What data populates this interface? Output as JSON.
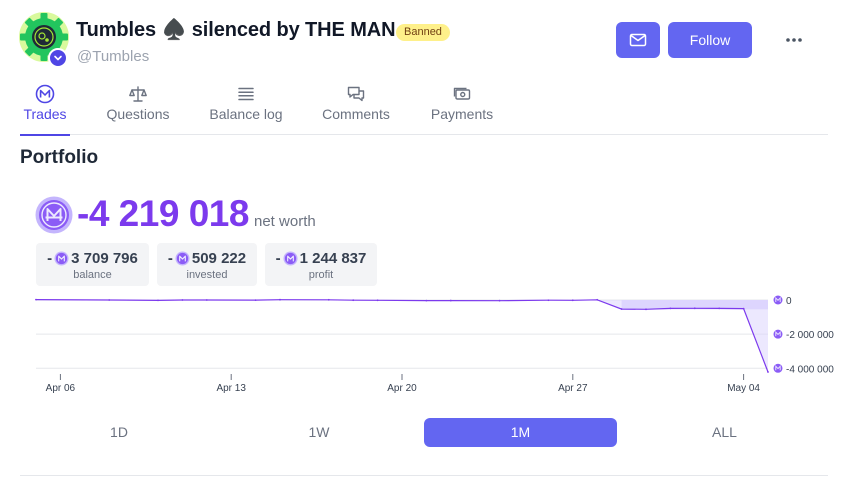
{
  "profile": {
    "name": "Tumbles ♠️ silenced by THE MAN",
    "badge": "Banned",
    "handle": "@Tumbles",
    "avatar_icon": "gear-avatar",
    "verified_icon": "chevron-down-icon"
  },
  "actions": {
    "message_icon": "mail-icon",
    "follow_label": "Follow",
    "more_icon": "ellipsis-icon"
  },
  "tabs": [
    {
      "label": "Trades",
      "icon": "mana-icon",
      "active": true
    },
    {
      "label": "Questions",
      "icon": "scale-icon",
      "active": false
    },
    {
      "label": "Balance log",
      "icon": "list-icon",
      "active": false
    },
    {
      "label": "Comments",
      "icon": "chat-icon",
      "active": false
    },
    {
      "label": "Payments",
      "icon": "payments-icon",
      "active": false
    }
  ],
  "portfolio": {
    "title": "Portfolio",
    "net_worth": "-4 219 018",
    "net_worth_label": "net worth",
    "stats": [
      {
        "sign": "-",
        "value": "3 709 796",
        "label": "balance"
      },
      {
        "sign": "-",
        "value": "509 222",
        "label": "invested"
      },
      {
        "sign": "-",
        "value": "1 244 837",
        "label": "profit"
      }
    ]
  },
  "chart_data": {
    "type": "area",
    "x_ticks": [
      "Apr 06",
      "Apr 13",
      "Apr 20",
      "Apr 27",
      "May 04"
    ],
    "y_ticks": [
      0,
      -2000000,
      -4000000
    ],
    "y_tick_labels": [
      "0",
      "-2 000 000",
      "-4 000 000"
    ],
    "ylim": [
      -4219018,
      0
    ],
    "grid": true,
    "series": [
      {
        "x": [
          "2024-04-05",
          "2024-04-08",
          "2024-04-10",
          "2024-04-11",
          "2024-04-12",
          "2024-04-14",
          "2024-04-15",
          "2024-04-17",
          "2024-04-18",
          "2024-04-19",
          "2024-04-21",
          "2024-04-22",
          "2024-04-24",
          "2024-04-26",
          "2024-04-27",
          "2024-04-28",
          "2024-04-29",
          "2024-04-30",
          "2024-05-01",
          "2024-05-02",
          "2024-05-03",
          "2024-05-04",
          "2024-05-05"
        ],
        "y": [
          22000,
          0,
          -22000,
          0,
          0,
          -8000,
          17000,
          11000,
          -11000,
          -17000,
          -36000,
          -33000,
          -39000,
          -14000,
          -17000,
          11000,
          -531000,
          -547000,
          -491000,
          -486000,
          -491000,
          -505000,
          -4219018
        ]
      }
    ],
    "bands": [
      {
        "from": "2024-04-29",
        "to": "2024-05-05",
        "ymin": -547000,
        "ymax": 0,
        "color": "#ddd6fe"
      }
    ],
    "colors": {
      "line": "#7c3aed",
      "fill": "#ddd6fe",
      "grid": "#e5e7eb"
    }
  },
  "periods": [
    {
      "label": "1D",
      "active": false
    },
    {
      "label": "1W",
      "active": false
    },
    {
      "label": "1M",
      "active": true
    },
    {
      "label": "ALL",
      "active": false
    }
  ],
  "colors": {
    "accent": "#6366f1",
    "brand": "#4f46e5",
    "mana": "#7c3aed",
    "badge_bg": "#fef08a"
  }
}
